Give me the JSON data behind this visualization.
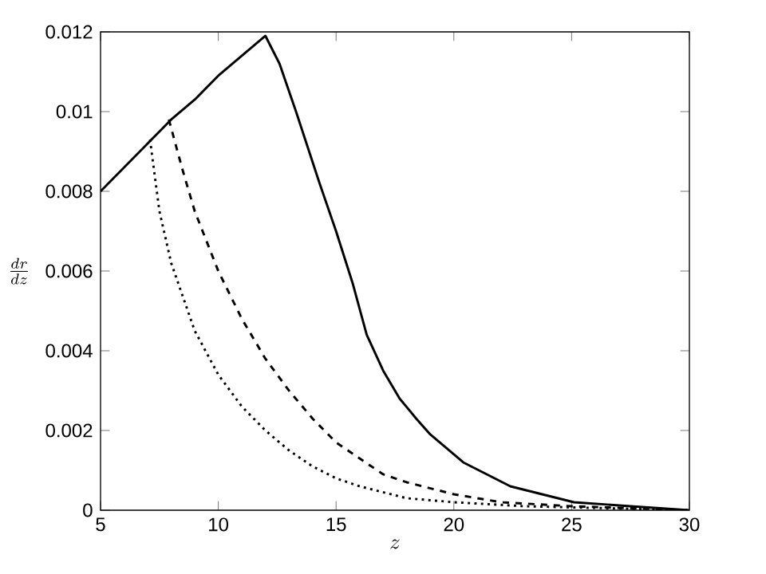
{
  "chart_data": {
    "type": "line",
    "xlabel": "z",
    "ylabel": "\\frac{dr}{dz}",
    "xlim": [
      5,
      30
    ],
    "ylim": [
      0,
      0.012
    ],
    "xticks": [
      5,
      10,
      15,
      20,
      25,
      30
    ],
    "yticks": [
      0,
      0.002,
      0.004,
      0.006,
      0.008,
      0.01,
      0.012
    ],
    "grid": false,
    "marker": "none",
    "series": [
      {
        "color": "#000000",
        "line_style": "solid",
        "x": [
          5,
          6,
          7,
          8,
          9,
          10,
          11,
          12,
          12.6,
          13.3,
          14.3,
          15,
          15.7,
          16.3,
          17,
          17.7,
          18.4,
          19,
          20.4,
          22.4,
          25.1,
          27.5,
          30
        ],
        "values": [
          0.008,
          0.0086,
          0.0092,
          0.0098,
          0.0103,
          0.0109,
          0.0114,
          0.0119,
          0.0112,
          0.01,
          0.0082,
          0.007,
          0.0057,
          0.0044,
          0.0035,
          0.0028,
          0.0023,
          0.0019,
          0.0012,
          0.0006,
          0.0002,
          0.0001,
          0
        ]
      },
      {
        "color": "#000000",
        "line_style": "dashed",
        "x": [
          7.9,
          8.5,
          9,
          10,
          11,
          12,
          13,
          14,
          15,
          16,
          17,
          18,
          20,
          22,
          25,
          30
        ],
        "values": [
          0.0098,
          0.0085,
          0.0075,
          0.006,
          0.0048,
          0.0038,
          0.003,
          0.0023,
          0.0017,
          0.0013,
          0.0009,
          0.0007,
          0.0004,
          0.0002,
          0.0001,
          0
        ]
      },
      {
        "color": "#000000",
        "line_style": "dotted",
        "x": [
          7.1,
          7.5,
          8,
          9,
          10,
          11,
          12,
          13,
          14,
          15,
          16,
          18,
          20,
          23,
          30
        ],
        "values": [
          0.0093,
          0.0075,
          0.0062,
          0.0045,
          0.0034,
          0.0026,
          0.002,
          0.0015,
          0.0011,
          0.0008,
          0.0006,
          0.0003,
          0.0002,
          0.0001,
          0
        ]
      }
    ]
  }
}
